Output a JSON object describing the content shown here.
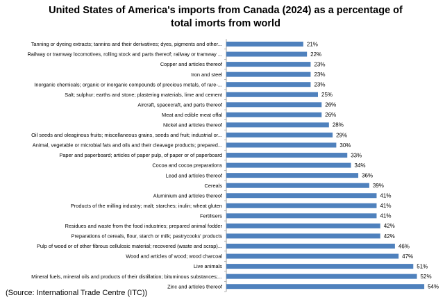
{
  "chart_data": {
    "type": "bar",
    "orientation": "horizontal",
    "title": "United States of America's imports from Canada (2024) as a percentage of total imorts from world",
    "source": "(Source: International Trade Centre (ITC))",
    "bar_color": "#4f81bd",
    "grid": false,
    "categories": [
      "Tanning or dyeing extracts; tannins and their derivatives; dyes, pigments and other...",
      "Railway or tramway  locomotives, rolling stock and parts thereof; railway or tramway ...",
      "Copper and articles thereof",
      "Iron and steel",
      "Inorganic chemicals; organic or inorganic compounds of precious metals, of rare-...",
      "Salt; sulphur; earths and stone; plastering materials, lime and cement",
      "Aircraft, spacecraft, and parts thereof",
      "Meat and edible meat offal",
      "Nickel and articles thereof",
      "Oil seeds and oleaginous fruits; miscellaneous grains, seeds and fruit; industrial or...",
      "Animal, vegetable or microbial fats and oils and their cleavage products; prepared...",
      "Paper and paperboard; articles of paper pulp, of paper or of paperboard",
      "Cocoa and cocoa preparations",
      "Lead and articles thereof",
      "Cereals",
      "Aluminium and articles thereof",
      "Products of the milling industry; malt; starches; inulin; wheat gluten",
      "Fertilisers",
      "Residues and waste  from the food industries; prepared animal fodder",
      "Preparations of cereals, flour, starch or milk; pastrycooks' products",
      "Pulp of wood or of other fibrous cellulosic material; recovered (waste and scrap)...",
      "Wood and articles of wood; wood charcoal",
      "Live animals",
      "Mineral fuels, mineral oils and products of their distillation; bituminous substances;...",
      "Zinc and articles thereof"
    ],
    "values": [
      21,
      22,
      23,
      23,
      23,
      25,
      26,
      26,
      28,
      29,
      30,
      33,
      34,
      36,
      39,
      41,
      41,
      41,
      42,
      42,
      46,
      47,
      51,
      52,
      54
    ],
    "value_labels": [
      "21%",
      "22%",
      "23%",
      "23%",
      "23%",
      "25%",
      "26%",
      "26%",
      "28%",
      "29%",
      "30%",
      "33%",
      "34%",
      "36%",
      "39%",
      "41%",
      "41%",
      "41%",
      "42%",
      "42%",
      "46%",
      "47%",
      "51%",
      "52%",
      "54%"
    ]
  }
}
